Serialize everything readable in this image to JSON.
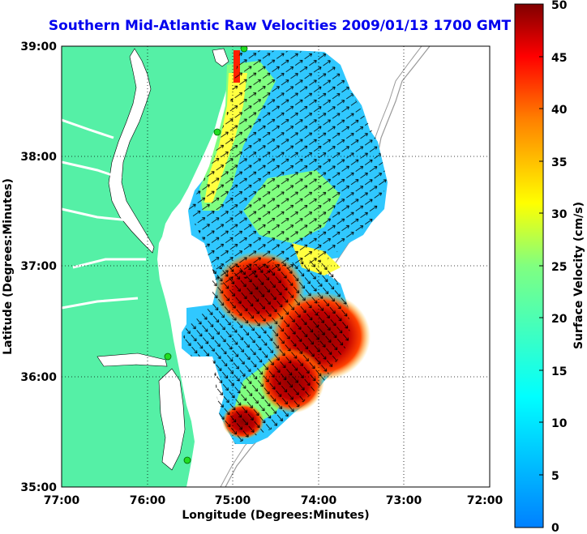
{
  "title": "Southern Mid-Atlantic Raw Velocities 2009/01/13 1700 GMT",
  "axes": {
    "xlabel": "Longitude (Degrees:Minutes)",
    "ylabel": "Latitude (Degrees:Minutes)",
    "x_ticks": [
      "77:00",
      "76:00",
      "75:00",
      "74:00",
      "73:00",
      "72:00"
    ],
    "y_ticks": [
      "39:00",
      "38:00",
      "37:00",
      "36:00",
      "35:00"
    ],
    "x_range_deg": [
      -77,
      -72
    ],
    "y_range_deg": [
      35,
      39
    ],
    "grid": true
  },
  "colorbar": {
    "label": "Surface Velocity (cm/s)",
    "ticks": [
      "0",
      "5",
      "10",
      "15",
      "20",
      "25",
      "30",
      "35",
      "40",
      "45",
      "50"
    ],
    "range": [
      0,
      50
    ],
    "colormap": "jet"
  },
  "colors": {
    "land": "#55f0a6",
    "title": "#0000ee",
    "stations": "#22dd22",
    "vectors": "#000000"
  }
}
